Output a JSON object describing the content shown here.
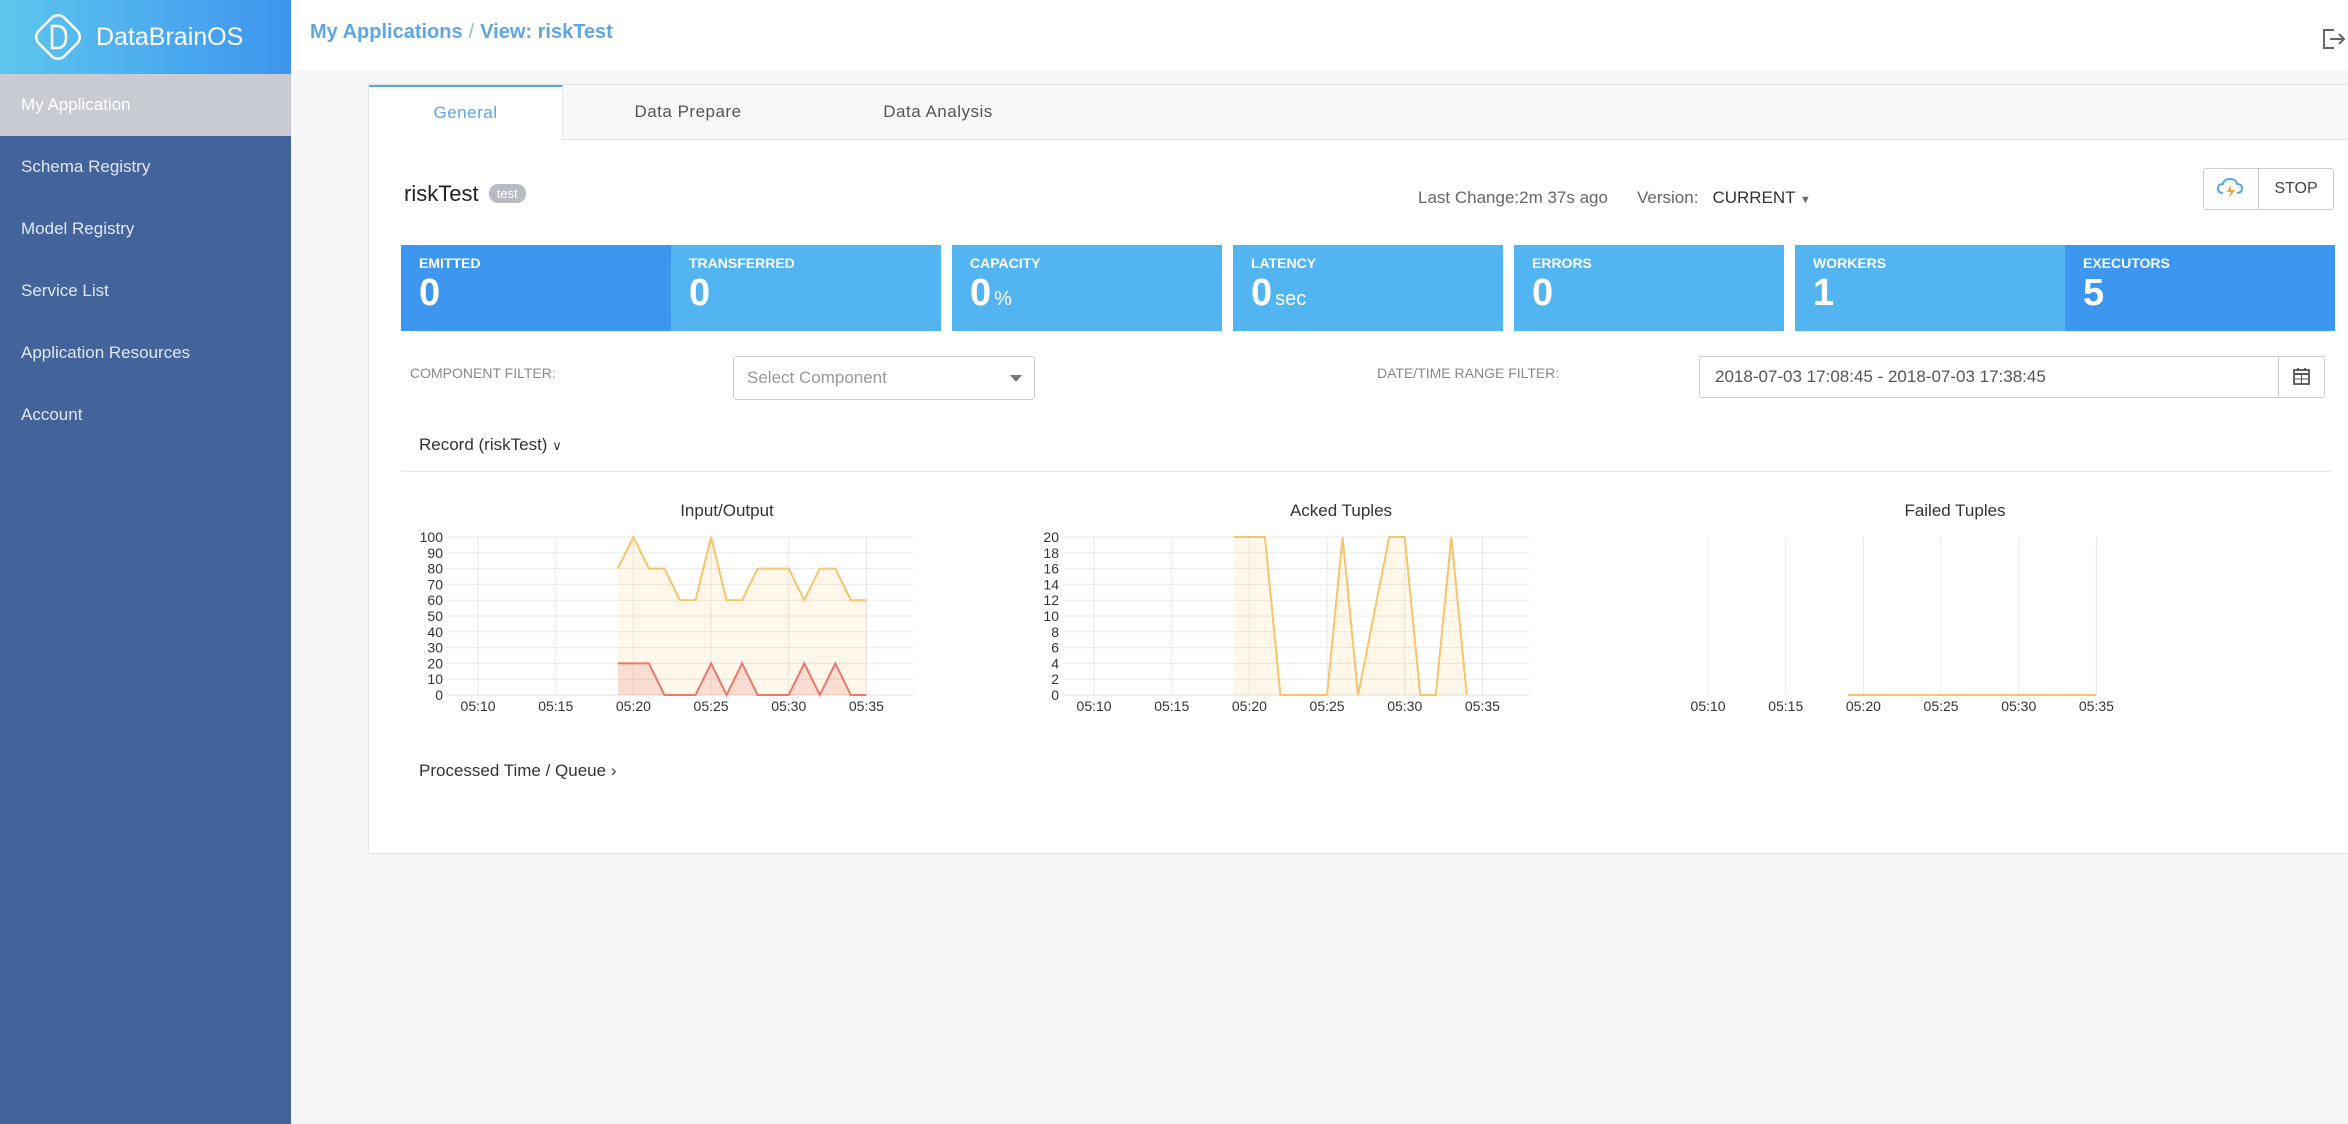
{
  "brand": {
    "name": "DataBrainOS"
  },
  "sidebar": {
    "items": [
      {
        "label": "My Application",
        "active": true
      },
      {
        "label": "Schema Registry"
      },
      {
        "label": "Model Registry"
      },
      {
        "label": "Service List"
      },
      {
        "label": "Application Resources"
      },
      {
        "label": "Account"
      }
    ]
  },
  "breadcrumb": {
    "root": "My Applications",
    "separator": "/",
    "current": "View: riskTest"
  },
  "tabs": [
    {
      "label": "General",
      "active": true
    },
    {
      "label": "Data Prepare"
    },
    {
      "label": "Data Analysis"
    }
  ],
  "app": {
    "name": "riskTest",
    "badge": "test",
    "last_change": "Last Change:2m 37s ago",
    "version_label": "Version:",
    "version_value": "CURRENT",
    "stop_label": "STOP"
  },
  "metrics": [
    {
      "label": "EMITTED",
      "value": "0",
      "unit": ""
    },
    {
      "label": "TRANSFERRED",
      "value": "0",
      "unit": ""
    },
    {
      "label": "CAPACITY",
      "value": "0",
      "unit": "%"
    },
    {
      "label": "LATENCY",
      "value": "0",
      "unit": "sec"
    },
    {
      "label": "ERRORS",
      "value": "0",
      "unit": ""
    },
    {
      "label": "WORKERS",
      "value": "1",
      "unit": ""
    },
    {
      "label": "EXECUTORS",
      "value": "5",
      "unit": ""
    }
  ],
  "filters": {
    "component_label": "COMPONENT FILTER:",
    "component_placeholder": "Select Component",
    "date_label": "DATE/TIME RANGE FILTER:",
    "date_value": "2018-07-03 17:08:45 - 2018-07-03 17:38:45"
  },
  "record_toggle": "Record (riskTest)",
  "processed_toggle": "Processed Time / Queue",
  "colors": {
    "accent": "#5ca6e8",
    "metric_dark": "#3d96f0",
    "metric_light": "#53b4f2",
    "sidebar": "#43649b",
    "series_orange": "#f7c46c",
    "series_red": "#e87a6d"
  },
  "chart_data": [
    {
      "type": "area",
      "title": "Input/Output",
      "x_ticks": [
        "05:10",
        "05:15",
        "05:20",
        "05:25",
        "05:30",
        "05:35"
      ],
      "y_ticks": [
        0,
        10,
        20,
        30,
        40,
        50,
        60,
        70,
        80,
        90,
        100
      ],
      "ylim": [
        0,
        100
      ],
      "xlim": [
        "05:08",
        "05:38"
      ],
      "series": [
        {
          "color": "#f7c46c",
          "x": [
            "05:19",
            "05:20",
            "05:21",
            "05:22",
            "05:23",
            "05:24",
            "05:25",
            "05:26",
            "05:27",
            "05:28",
            "05:29",
            "05:30",
            "05:31",
            "05:32",
            "05:33",
            "05:34",
            "05:35"
          ],
          "values": [
            80,
            100,
            80,
            80,
            60,
            60,
            100,
            60,
            60,
            80,
            80,
            80,
            60,
            80,
            80,
            60,
            60
          ]
        },
        {
          "color": "#e87a6d",
          "x": [
            "05:19",
            "05:20",
            "05:21",
            "05:22",
            "05:23",
            "05:24",
            "05:25",
            "05:26",
            "05:27",
            "05:28",
            "05:29",
            "05:30",
            "05:31",
            "05:32",
            "05:33",
            "05:34",
            "05:35"
          ],
          "values": [
            20,
            20,
            20,
            0,
            0,
            0,
            20,
            0,
            20,
            0,
            0,
            0,
            20,
            0,
            20,
            0,
            0
          ]
        }
      ]
    },
    {
      "type": "area",
      "title": "Acked Tuples",
      "x_ticks": [
        "05:10",
        "05:15",
        "05:20",
        "05:25",
        "05:30",
        "05:35"
      ],
      "y_ticks": [
        0,
        2,
        4,
        6,
        8,
        10,
        12,
        14,
        16,
        18,
        20
      ],
      "ylim": [
        0,
        20
      ],
      "xlim": [
        "05:08",
        "05:38"
      ],
      "series": [
        {
          "color": "#f7c46c",
          "x": [
            "05:19",
            "05:21",
            "05:22",
            "05:25",
            "05:26",
            "05:27",
            "05:29",
            "05:30",
            "05:31",
            "05:32",
            "05:33",
            "05:34"
          ],
          "values": [
            20,
            20,
            0,
            0,
            20,
            0,
            20,
            20,
            0,
            0,
            20,
            0
          ]
        }
      ]
    },
    {
      "type": "area",
      "title": "Failed Tuples",
      "x_ticks": [
        "05:10",
        "05:15",
        "05:20",
        "05:25",
        "05:30",
        "05:35"
      ],
      "y_ticks": [],
      "xlim": [
        "05:08",
        "05:38"
      ],
      "series": [
        {
          "color": "#f7c46c",
          "x": [
            "05:19",
            "05:35"
          ],
          "values": [
            0,
            0
          ]
        }
      ]
    }
  ]
}
